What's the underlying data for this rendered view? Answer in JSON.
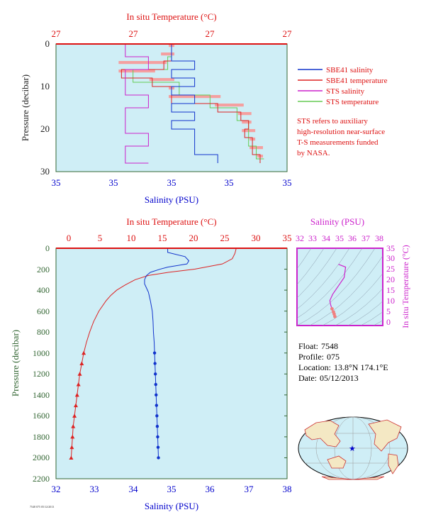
{
  "colors": {
    "panel_bg": "#cfeef6",
    "red_axis": "#dd1111",
    "green_axis": "#336633",
    "blue_axis": "#0000cc",
    "magenta": "#cc22cc",
    "sbe_salinity": "#1133cc",
    "sbe_temperature": "#dd2222",
    "sts_salinity": "#cc22cc",
    "sts_temperature": "#66cc55",
    "sts_temperature_fill": "#f4a0a0"
  },
  "top_panel": {
    "x_top_title": "In situ Temperature (°C)",
    "x_top_ticks": [
      "27",
      "27",
      "27",
      "27"
    ],
    "x_bottom_title": "Salinity (PSU)",
    "x_bottom_ticks": [
      "35",
      "35",
      "35",
      "35",
      "35"
    ],
    "y_title": "Pressure (decibar)",
    "y_ticks": [
      "0",
      "10",
      "20",
      "30"
    ]
  },
  "legend": {
    "items": [
      {
        "label": "SBE41 salinity",
        "color": "#1133cc"
      },
      {
        "label": "SBE41 temperature",
        "color": "#dd2222"
      },
      {
        "label": "STS salinity",
        "color": "#cc22cc"
      },
      {
        "label": "STS temperature",
        "color": "#66cc55"
      }
    ],
    "note": [
      "STS refers to auxiliary",
      "high-resolution near-surface",
      "T-S measurements funded",
      "by NASA."
    ]
  },
  "main_panel": {
    "x_top_title": "In situ Temperature (°C)",
    "x_top_ticks": [
      "0",
      "5",
      "10",
      "15",
      "20",
      "25",
      "30",
      "35"
    ],
    "x_bottom_title": "Salinity (PSU)",
    "x_bottom_ticks": [
      "32",
      "33",
      "34",
      "35",
      "36",
      "37",
      "38"
    ],
    "y_title": "Pressure (decibar)",
    "y_ticks": [
      "0",
      "200",
      "400",
      "600",
      "800",
      "1000",
      "1200",
      "1400",
      "1600",
      "1800",
      "2000",
      "2200"
    ]
  },
  "ts_panel": {
    "x_title": "Salinity (PSU)",
    "x_ticks": [
      "32",
      "33",
      "34",
      "35",
      "36",
      "37",
      "38"
    ],
    "y_title": "In situ Temperature (°C)",
    "y_ticks": [
      "0",
      "5",
      "10",
      "15",
      "20",
      "25",
      "30",
      "35"
    ]
  },
  "float_info": [
    {
      "label": "Float:",
      "value": "7548"
    },
    {
      "label": "Profile:",
      "value": "075"
    },
    {
      "label": "Location:",
      "value": "13.8°N  174.1°E"
    },
    {
      "label": "Date:",
      "value": "05/12/2013"
    }
  ],
  "footer_text": "7548 075 05/12/2013",
  "chart_data": [
    {
      "type": "line",
      "title": "",
      "xlabel": "Salinity (PSU)",
      "x2label": "In situ Temperature (°C)",
      "ylabel": "Pressure (decibar)",
      "ylim": [
        30,
        0
      ],
      "series": [
        {
          "name": "SBE41 salinity",
          "pressure": [
            0,
            2,
            4,
            6,
            8,
            10,
            12,
            14,
            16,
            18,
            20,
            22,
            24,
            26,
            28
          ],
          "values": [
            34.71,
            34.71,
            34.72,
            34.71,
            34.72,
            34.71,
            34.72,
            34.71,
            34.72,
            34.71,
            34.72,
            34.72,
            34.72,
            34.73,
            34.73
          ]
        },
        {
          "name": "SBE41 temperature",
          "pressure": [
            0,
            2,
            4,
            6,
            8,
            10,
            12,
            14,
            16,
            18,
            20,
            22,
            24,
            26,
            28
          ],
          "values": [
            27.1,
            27.1,
            27.08,
            26.97,
            27.05,
            27.1,
            27.1,
            27.22,
            27.28,
            27.3,
            27.29,
            27.31,
            27.31,
            27.33,
            27.33
          ]
        },
        {
          "name": "STS salinity",
          "pressure": [
            0,
            3,
            6,
            9,
            12,
            15,
            18,
            21,
            24,
            27,
            28
          ],
          "values": [
            34.69,
            34.7,
            34.69,
            34.69,
            34.7,
            34.69,
            34.69,
            34.7,
            34.69,
            34.69,
            34.7
          ]
        },
        {
          "name": "STS temperature",
          "pressure": [
            0,
            3,
            6,
            9,
            12,
            15,
            18,
            21,
            24,
            27
          ],
          "values": [
            27.1,
            27.09,
            27.0,
            27.12,
            27.2,
            27.27,
            27.3,
            27.3,
            27.32,
            27.34
          ]
        }
      ]
    },
    {
      "type": "line",
      "title": "",
      "xlabel": "Salinity (PSU)",
      "xlim": [
        32,
        38
      ],
      "x2label": "In situ Temperature (°C)",
      "x2lim": [
        0,
        35
      ],
      "ylabel": "Pressure (decibar)",
      "ylim": [
        2200,
        0
      ],
      "series": [
        {
          "name": "Salinity",
          "pressure": [
            0,
            40,
            80,
            120,
            150,
            180,
            200,
            230,
            260,
            300,
            340,
            380,
            420,
            500,
            600,
            700,
            800,
            900,
            1000,
            1100,
            1200,
            1300,
            1400,
            1500,
            1600,
            1700,
            1800,
            1900,
            2000
          ],
          "values": [
            34.9,
            34.9,
            35.35,
            35.45,
            35.4,
            34.9,
            34.7,
            34.45,
            34.35,
            34.3,
            34.3,
            34.35,
            34.4,
            34.45,
            34.5,
            34.52,
            34.53,
            34.55,
            34.56,
            34.57,
            34.58,
            34.59,
            34.6,
            34.61,
            34.62,
            34.63,
            34.64,
            34.65,
            34.66
          ]
        },
        {
          "name": "Temperature",
          "pressure": [
            0,
            50,
            100,
            150,
            200,
            230,
            260,
            300,
            350,
            400,
            450,
            500,
            600,
            700,
            800,
            900,
            1000,
            1100,
            1200,
            1300,
            1400,
            1500,
            1600,
            1700,
            1800,
            1900,
            2000
          ],
          "values": [
            27.3,
            27.1,
            26.7,
            25.2,
            21.0,
            17.0,
            14.0,
            12.0,
            10.5,
            9.2,
            8.3,
            7.6,
            6.5,
            5.7,
            5.1,
            4.6,
            4.2,
            3.9,
            3.6,
            3.4,
            3.2,
            3.0,
            2.8,
            2.6,
            2.5,
            2.4,
            2.3
          ]
        }
      ]
    },
    {
      "type": "scatter",
      "title": "",
      "xlabel": "Salinity (PSU)",
      "xlim": [
        32,
        38
      ],
      "ylabel": "In situ Temperature (°C)",
      "ylim": [
        -2,
        35
      ],
      "series": [
        {
          "name": "T-S",
          "salinity": [
            34.9,
            35.4,
            35.3,
            34.9,
            34.5,
            34.3,
            34.35,
            34.45,
            34.55,
            34.6,
            34.65
          ],
          "temperature": [
            27.3,
            26.0,
            21.0,
            17.0,
            13.0,
            10.0,
            8.0,
            6.0,
            4.5,
            3.5,
            2.3
          ]
        }
      ]
    }
  ]
}
